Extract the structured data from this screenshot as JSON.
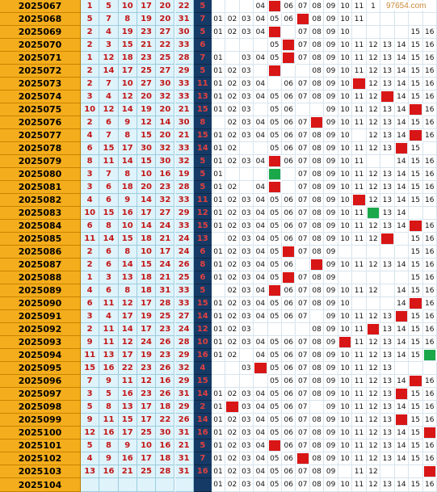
{
  "watermark": "97654.com",
  "colors": {
    "period_bg": "#f4ad1c",
    "red_ball": "#c21818",
    "blue_column_bg": "#163a66",
    "hit_red": "#d81616",
    "hit_green": "#1aa84a"
  },
  "rows": [
    {
      "period": "2025067",
      "reds": [
        "1",
        "5",
        "10",
        "17",
        "20",
        "22"
      ],
      "blue": "5",
      "cells": [
        "",
        "",
        "",
        "04",
        "R",
        "06",
        "07",
        "08",
        "09",
        "10",
        "11",
        "1",
        "",
        "",
        "",
        ""
      ]
    },
    {
      "period": "2025068",
      "reds": [
        "5",
        "7",
        "8",
        "19",
        "20",
        "31"
      ],
      "blue": "7",
      "cells": [
        "01",
        "02",
        "03",
        "04",
        "05",
        "06",
        "R",
        "08",
        "09",
        "10",
        "11",
        "",
        "",
        "",
        "",
        ""
      ]
    },
    {
      "period": "2025069",
      "reds": [
        "2",
        "4",
        "19",
        "23",
        "27",
        "30"
      ],
      "blue": "5",
      "cells": [
        "01",
        "02",
        "03",
        "04",
        "R",
        "",
        "07",
        "08",
        "09",
        "10",
        "",
        "",
        "",
        "",
        "15",
        "16"
      ]
    },
    {
      "period": "2025070",
      "reds": [
        "2",
        "3",
        "15",
        "21",
        "22",
        "33"
      ],
      "blue": "6",
      "cells": [
        "",
        "",
        "",
        "",
        "05",
        "R",
        "07",
        "08",
        "09",
        "10",
        "11",
        "12",
        "13",
        "14",
        "15",
        "16"
      ]
    },
    {
      "period": "2025071",
      "reds": [
        "1",
        "12",
        "18",
        "23",
        "25",
        "28"
      ],
      "blue": "7",
      "cells": [
        "01",
        "",
        "03",
        "04",
        "05",
        "R",
        "07",
        "08",
        "09",
        "10",
        "11",
        "12",
        "13",
        "14",
        "15",
        "16"
      ]
    },
    {
      "period": "2025072",
      "reds": [
        "2",
        "14",
        "17",
        "25",
        "27",
        "29"
      ],
      "blue": "5",
      "cells": [
        "01",
        "02",
        "03",
        "",
        "R",
        "",
        "",
        "08",
        "09",
        "10",
        "11",
        "12",
        "13",
        "14",
        "15",
        "16"
      ]
    },
    {
      "period": "2025073",
      "reds": [
        "2",
        "7",
        "10",
        "27",
        "30",
        "33"
      ],
      "blue": "11",
      "cells": [
        "01",
        "02",
        "03",
        "04",
        "",
        "06",
        "07",
        "08",
        "09",
        "10",
        "R",
        "12",
        "13",
        "14",
        "15",
        "16"
      ]
    },
    {
      "period": "2025074",
      "reds": [
        "3",
        "4",
        "12",
        "20",
        "32",
        "33"
      ],
      "blue": "13",
      "cells": [
        "01",
        "02",
        "03",
        "04",
        "05",
        "06",
        "07",
        "08",
        "09",
        "10",
        "11",
        "12",
        "R",
        "14",
        "15",
        "16"
      ]
    },
    {
      "period": "2025075",
      "reds": [
        "10",
        "12",
        "14",
        "19",
        "20",
        "21"
      ],
      "blue": "15",
      "cells": [
        "01",
        "02",
        "03",
        "",
        "05",
        "06",
        "",
        "",
        "09",
        "10",
        "11",
        "12",
        "13",
        "14",
        "R",
        "16"
      ]
    },
    {
      "period": "2025076",
      "reds": [
        "2",
        "6",
        "9",
        "12",
        "14",
        "30"
      ],
      "blue": "8",
      "cells": [
        "",
        "02",
        "03",
        "04",
        "05",
        "06",
        "07",
        "R",
        "09",
        "10",
        "11",
        "12",
        "13",
        "14",
        "15",
        "16"
      ]
    },
    {
      "period": "2025077",
      "reds": [
        "4",
        "7",
        "8",
        "15",
        "20",
        "21"
      ],
      "blue": "15",
      "cells": [
        "01",
        "02",
        "03",
        "04",
        "05",
        "06",
        "07",
        "08",
        "09",
        "10",
        "",
        "12",
        "13",
        "14",
        "R",
        "16"
      ]
    },
    {
      "period": "2025078",
      "reds": [
        "6",
        "15",
        "17",
        "30",
        "32",
        "33"
      ],
      "blue": "14",
      "cells": [
        "01",
        "02",
        "",
        "",
        "05",
        "06",
        "07",
        "08",
        "09",
        "10",
        "11",
        "12",
        "13",
        "R",
        "15",
        ""
      ]
    },
    {
      "period": "2025079",
      "reds": [
        "8",
        "11",
        "14",
        "15",
        "30",
        "32"
      ],
      "blue": "5",
      "cells": [
        "01",
        "02",
        "03",
        "04",
        "R",
        "06",
        "07",
        "08",
        "09",
        "10",
        "11",
        "",
        "",
        "14",
        "15",
        "16"
      ]
    },
    {
      "period": "2025080",
      "reds": [
        "3",
        "7",
        "8",
        "10",
        "16",
        "19"
      ],
      "blue": "5",
      "cells": [
        "01",
        "",
        "",
        "",
        "G",
        "",
        "07",
        "08",
        "09",
        "10",
        "11",
        "12",
        "13",
        "14",
        "15",
        "16"
      ]
    },
    {
      "period": "2025081",
      "reds": [
        "3",
        "6",
        "18",
        "20",
        "23",
        "28"
      ],
      "blue": "5",
      "cells": [
        "01",
        "02",
        "",
        "04",
        "R",
        "",
        "07",
        "08",
        "09",
        "10",
        "11",
        "12",
        "13",
        "14",
        "15",
        "16"
      ]
    },
    {
      "period": "2025082",
      "reds": [
        "4",
        "6",
        "9",
        "14",
        "32",
        "33"
      ],
      "blue": "11",
      "cells": [
        "01",
        "02",
        "03",
        "04",
        "05",
        "06",
        "07",
        "08",
        "09",
        "10",
        "R",
        "12",
        "13",
        "14",
        "15",
        "16"
      ]
    },
    {
      "period": "2025083",
      "reds": [
        "10",
        "15",
        "16",
        "17",
        "27",
        "29"
      ],
      "blue": "12",
      "cells": [
        "01",
        "02",
        "03",
        "04",
        "05",
        "06",
        "07",
        "08",
        "09",
        "10",
        "11",
        "G",
        "13",
        "14",
        "",
        ""
      ]
    },
    {
      "period": "2025084",
      "reds": [
        "6",
        "8",
        "10",
        "14",
        "24",
        "33"
      ],
      "blue": "15",
      "cells": [
        "01",
        "02",
        "03",
        "04",
        "05",
        "06",
        "07",
        "08",
        "09",
        "10",
        "11",
        "12",
        "13",
        "14",
        "R",
        "16"
      ]
    },
    {
      "period": "2025085",
      "reds": [
        "11",
        "14",
        "15",
        "18",
        "21",
        "24"
      ],
      "blue": "13",
      "cells": [
        "",
        "02",
        "03",
        "04",
        "05",
        "06",
        "07",
        "08",
        "09",
        "10",
        "11",
        "12",
        "R",
        "",
        "15",
        "16"
      ]
    },
    {
      "period": "2025086",
      "reds": [
        "2",
        "6",
        "8",
        "10",
        "17",
        "24"
      ],
      "blue": "6",
      "cells": [
        "01",
        "02",
        "03",
        "04",
        "05",
        "R",
        "07",
        "08",
        "09",
        "",
        "",
        "",
        "",
        "",
        "15",
        "16"
      ]
    },
    {
      "period": "2025087",
      "reds": [
        "2",
        "6",
        "14",
        "15",
        "24",
        "26"
      ],
      "blue": "8",
      "cells": [
        "01",
        "02",
        "03",
        "04",
        "05",
        "06",
        "",
        "R",
        "09",
        "10",
        "11",
        "12",
        "13",
        "14",
        "15",
        "16"
      ]
    },
    {
      "period": "2025088",
      "reds": [
        "1",
        "3",
        "13",
        "18",
        "21",
        "25"
      ],
      "blue": "6",
      "cells": [
        "01",
        "02",
        "03",
        "04",
        "05",
        "R",
        "07",
        "08",
        "09",
        "",
        "",
        "",
        "",
        "",
        "15",
        "16"
      ]
    },
    {
      "period": "2025089",
      "reds": [
        "4",
        "6",
        "8",
        "18",
        "31",
        "33"
      ],
      "blue": "5",
      "cells": [
        "",
        "02",
        "03",
        "04",
        "R",
        "06",
        "07",
        "08",
        "09",
        "10",
        "11",
        "12",
        "",
        "14",
        "15",
        "16"
      ]
    },
    {
      "period": "2025090",
      "reds": [
        "6",
        "11",
        "12",
        "17",
        "28",
        "33"
      ],
      "blue": "15",
      "cells": [
        "01",
        "02",
        "03",
        "04",
        "05",
        "06",
        "07",
        "08",
        "09",
        "10",
        "",
        "",
        "",
        "14",
        "R",
        "16"
      ]
    },
    {
      "period": "2025091",
      "reds": [
        "3",
        "4",
        "17",
        "19",
        "25",
        "27"
      ],
      "blue": "14",
      "cells": [
        "01",
        "02",
        "03",
        "04",
        "05",
        "06",
        "07",
        "",
        "09",
        "10",
        "11",
        "12",
        "13",
        "R",
        "15",
        "16"
      ]
    },
    {
      "period": "2025092",
      "reds": [
        "2",
        "11",
        "14",
        "17",
        "23",
        "24"
      ],
      "blue": "12",
      "cells": [
        "01",
        "02",
        "03",
        "",
        "",
        "",
        "",
        "08",
        "09",
        "10",
        "11",
        "R",
        "13",
        "14",
        "15",
        "16"
      ]
    },
    {
      "period": "2025093",
      "reds": [
        "9",
        "11",
        "12",
        "24",
        "26",
        "28"
      ],
      "blue": "10",
      "cells": [
        "01",
        "02",
        "03",
        "04",
        "05",
        "06",
        "07",
        "08",
        "09",
        "R",
        "11",
        "12",
        "13",
        "14",
        "15",
        "16"
      ]
    },
    {
      "period": "2025094",
      "reds": [
        "11",
        "13",
        "17",
        "19",
        "23",
        "29"
      ],
      "blue": "16",
      "cells": [
        "01",
        "02",
        "",
        "04",
        "05",
        "06",
        "07",
        "08",
        "09",
        "10",
        "11",
        "12",
        "13",
        "14",
        "15",
        "G"
      ]
    },
    {
      "period": "2025095",
      "reds": [
        "15",
        "16",
        "22",
        "23",
        "26",
        "32"
      ],
      "blue": "4",
      "cells": [
        "",
        "",
        "03",
        "R",
        "05",
        "06",
        "07",
        "08",
        "09",
        "10",
        "11",
        "12",
        "13",
        "",
        "",
        ""
      ]
    },
    {
      "period": "2025096",
      "reds": [
        "7",
        "9",
        "11",
        "12",
        "16",
        "29"
      ],
      "blue": "15",
      "cells": [
        "",
        "",
        "",
        "",
        "05",
        "06",
        "07",
        "08",
        "09",
        "10",
        "11",
        "12",
        "13",
        "14",
        "R",
        "16"
      ]
    },
    {
      "period": "2025097",
      "reds": [
        "3",
        "5",
        "16",
        "23",
        "26",
        "31"
      ],
      "blue": "14",
      "cells": [
        "01",
        "02",
        "03",
        "04",
        "05",
        "06",
        "07",
        "08",
        "09",
        "10",
        "11",
        "12",
        "13",
        "R",
        "15",
        "16"
      ]
    },
    {
      "period": "2025098",
      "reds": [
        "5",
        "8",
        "13",
        "17",
        "18",
        "29"
      ],
      "blue": "2",
      "cells": [
        "01",
        "R",
        "03",
        "04",
        "05",
        "06",
        "07",
        "",
        "09",
        "10",
        "11",
        "12",
        "13",
        "14",
        "15",
        "16"
      ]
    },
    {
      "period": "2025099",
      "reds": [
        "9",
        "11",
        "15",
        "17",
        "22",
        "26"
      ],
      "blue": "14",
      "cells": [
        "01",
        "02",
        "03",
        "04",
        "05",
        "06",
        "07",
        "08",
        "09",
        "10",
        "11",
        "12",
        "13",
        "R",
        "15",
        "16"
      ]
    },
    {
      "period": "2025100",
      "reds": [
        "12",
        "16",
        "17",
        "25",
        "30",
        "31"
      ],
      "blue": "16",
      "cells": [
        "01",
        "02",
        "03",
        "04",
        "05",
        "06",
        "07",
        "08",
        "09",
        "10",
        "11",
        "12",
        "13",
        "14",
        "15",
        "R"
      ]
    },
    {
      "period": "2025101",
      "reds": [
        "5",
        "8",
        "9",
        "10",
        "16",
        "21"
      ],
      "blue": "5",
      "cells": [
        "01",
        "02",
        "03",
        "04",
        "R",
        "06",
        "07",
        "08",
        "09",
        "10",
        "11",
        "12",
        "13",
        "14",
        "15",
        "16"
      ]
    },
    {
      "period": "2025102",
      "reds": [
        "4",
        "9",
        "16",
        "17",
        "18",
        "31"
      ],
      "blue": "7",
      "cells": [
        "01",
        "02",
        "03",
        "04",
        "05",
        "06",
        "R",
        "08",
        "09",
        "10",
        "11",
        "12",
        "13",
        "14",
        "15",
        "16"
      ]
    },
    {
      "period": "2025103",
      "reds": [
        "13",
        "16",
        "21",
        "25",
        "28",
        "31"
      ],
      "blue": "16",
      "cells": [
        "01",
        "02",
        "03",
        "04",
        "05",
        "06",
        "07",
        "08",
        "09",
        "",
        "11",
        "12",
        "",
        "",
        "",
        "R"
      ]
    },
    {
      "period": "2025104",
      "reds": [
        "",
        "",
        "",
        "",
        "",
        ""
      ],
      "blue": "",
      "cells": [
        "01",
        "02",
        "03",
        "04",
        "05",
        "06",
        "07",
        "08",
        "09",
        "10",
        "11",
        "12",
        "13",
        "14",
        "15",
        "16"
      ]
    }
  ]
}
